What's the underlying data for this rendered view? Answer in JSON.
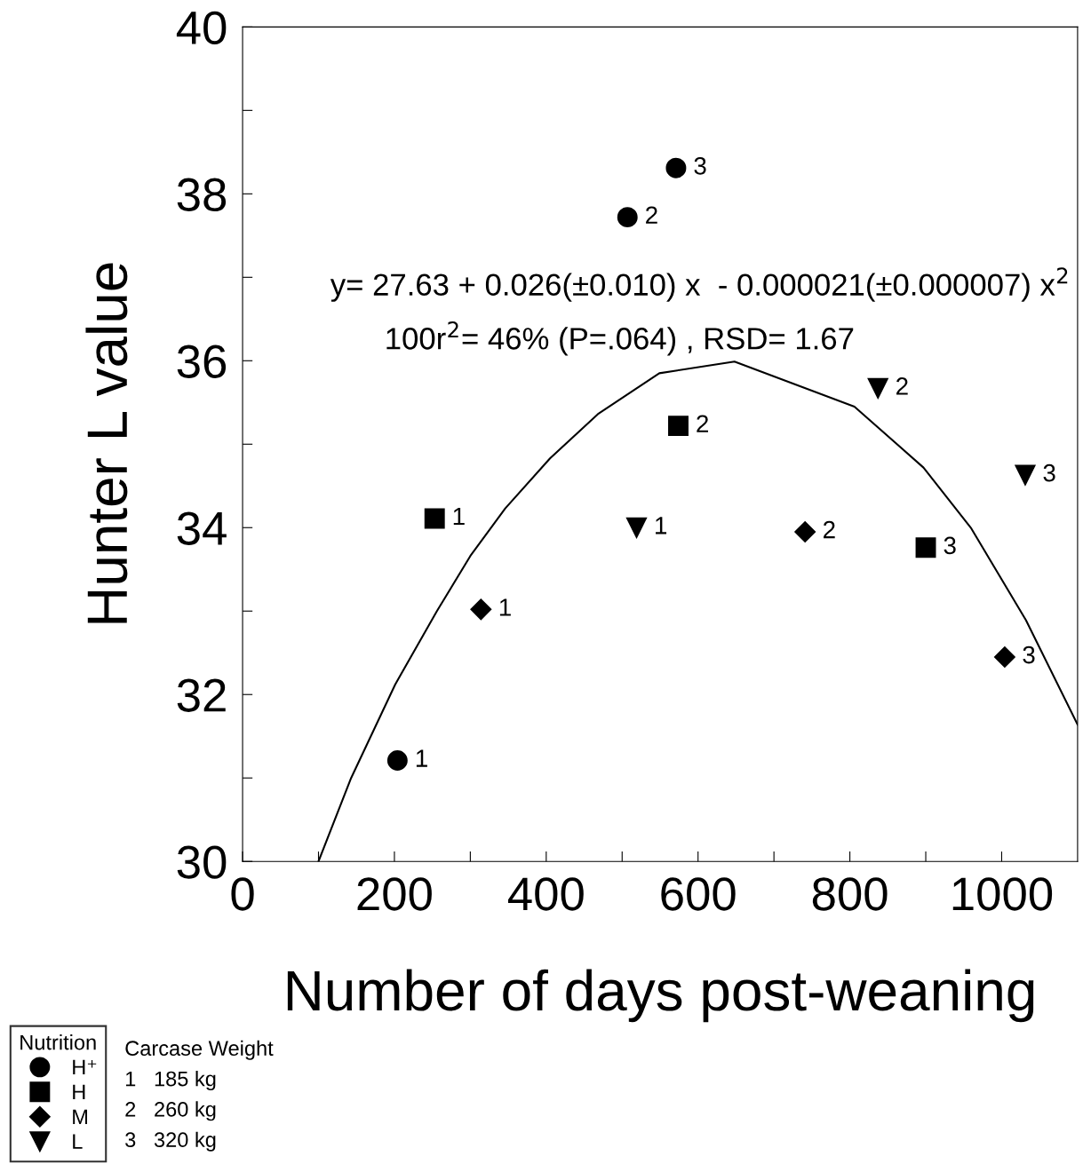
{
  "chart_data": {
    "type": "scatter",
    "xlabel": "Number of days post-weaning",
    "ylabel": "Hunter L value",
    "xlim": [
      0,
      1100
    ],
    "xticks": [
      0,
      {
        "value": 100,
        "label": null
      },
      200,
      {
        "value": 300,
        "label": null
      },
      400,
      {
        "value": 500,
        "label": null
      },
      600,
      {
        "value": 700,
        "label": null
      },
      800,
      {
        "value": 900,
        "label": null
      },
      1000
    ],
    "ylim": [
      30,
      40
    ],
    "yticks": [
      30,
      {
        "value": 31,
        "label": null
      },
      32,
      {
        "value": 33,
        "label": null
      },
      34,
      {
        "value": 35,
        "label": null
      },
      36,
      {
        "value": 37,
        "label": null
      },
      38,
      {
        "value": 39,
        "label": null
      },
      40
    ],
    "grid": false,
    "legend": "bottom left",
    "legend_title": "Nutrition",
    "series": [
      {
        "name": "H⁺",
        "color": "#000000",
        "marker": "circle",
        "x": [
          204,
          507,
          571
        ],
        "values": [
          31.21,
          37.72,
          38.31
        ]
      },
      {
        "name": "H",
        "color": "#000000",
        "marker": "square",
        "x": [
          253,
          574,
          900
        ],
        "values": [
          34.11,
          35.22,
          33.76
        ]
      },
      {
        "name": "M",
        "color": "#000000",
        "marker": "diamond",
        "x": [
          314,
          741,
          1004
        ],
        "values": [
          33.02,
          33.95,
          32.45
        ]
      },
      {
        "name": "L",
        "color": "#000000",
        "marker": "triangle",
        "x": [
          519,
          837,
          1031
        ],
        "values": [
          34.0,
          35.67,
          34.63
        ]
      },
      {
        "type": "line",
        "color": "#000000",
        "line_style": "solid",
        "marker": "none",
        "x": [
          100,
          143,
          201,
          256,
          300,
          346,
          405,
          468,
          549,
          648,
          806,
          897,
          960,
          1032,
          1100
        ],
        "values": [
          30.0,
          31.0,
          32.12,
          33.0,
          33.66,
          34.23,
          34.83,
          35.36,
          35.85,
          35.99,
          35.45,
          34.72,
          33.99,
          32.89,
          31.64
        ]
      }
    ],
    "annotations": [
      "y= 27.63 + 0.026(±0.010) x  - 0.000021(±0.000007) x$^{2}$",
      "100r$^{2}$= 46% (P=.064) , RSD= 1.67",
      "Carcase Weight",
      "1   185 kg",
      "2   260 kg",
      "3   320 kg",
      {
        "text": "1",
        "x": 204,
        "y": 31.21
      },
      {
        "text": "2",
        "x": 507,
        "y": 37.72
      },
      {
        "text": "3",
        "x": 571,
        "y": 38.31
      },
      {
        "text": "1",
        "x": 253,
        "y": 34.11
      },
      {
        "text": "2",
        "x": 574,
        "y": 35.22
      },
      {
        "text": "3",
        "x": 900,
        "y": 33.76
      },
      {
        "text": "1",
        "x": 314,
        "y": 33.02
      },
      {
        "text": "2",
        "x": 741,
        "y": 33.95
      },
      {
        "text": "3",
        "x": 1004,
        "y": 32.45
      },
      {
        "text": "1",
        "x": 519,
        "y": 34.0
      },
      {
        "text": "2",
        "x": 837,
        "y": 35.67
      },
      {
        "text": "3",
        "x": 1031,
        "y": 34.63
      }
    ]
  }
}
